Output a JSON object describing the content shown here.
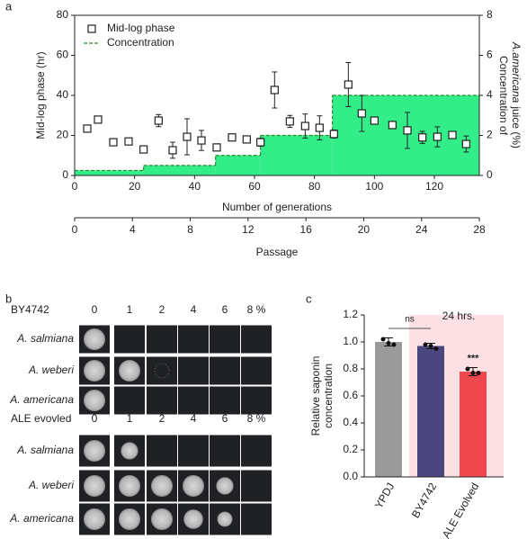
{
  "chart_data": [
    {
      "type": "scatter",
      "panel_label": "a",
      "xlabel": "Number of generations",
      "ylabel": "Mid-log phase (hr)",
      "y2label": [
        "Concentration of",
        "A.americana",
        "juice (%)"
      ],
      "x2label": "Passage",
      "xlim": [
        0,
        135
      ],
      "xticks": [
        0,
        20,
        40,
        60,
        80,
        100,
        120
      ],
      "ylim": [
        0,
        80
      ],
      "yticks": [
        0,
        20,
        40,
        60,
        80
      ],
      "y2lim": [
        0,
        8
      ],
      "y2ticks": [
        0,
        2,
        4,
        6,
        8
      ],
      "x2lim": [
        0,
        28
      ],
      "x2ticks": [
        0,
        4,
        8,
        12,
        16,
        20,
        24,
        28
      ],
      "legend": "upper left",
      "series": [
        {
          "name": "Mid-log phase",
          "type": "scatter",
          "color": "#222222",
          "x": [
            4.2,
            7.8,
            12.9,
            18,
            23,
            28,
            32.7,
            37.5,
            42.3,
            47.4,
            52.5,
            57.4,
            62,
            66.7,
            71.8,
            76.9,
            81.7,
            86.5,
            91.3,
            95.8,
            100,
            106,
            111,
            116,
            121,
            126,
            130.6
          ],
          "values": [
            23.4,
            27.9,
            16.6,
            17,
            13,
            27.4,
            12.6,
            19.3,
            17.5,
            14,
            19,
            18,
            16.6,
            42.7,
            27,
            24.7,
            23.8,
            20.7,
            45.4,
            31,
            27.4,
            25.2,
            22.5,
            19,
            19.3,
            20.2,
            15.7
          ],
          "errors": [
            1,
            1,
            1,
            1.5,
            1,
            3,
            4,
            9,
            5,
            1.5,
            1.5,
            1.5,
            2,
            9,
            3,
            6,
            6,
            2,
            11,
            9,
            1,
            1,
            9,
            3,
            5,
            1,
            4
          ]
        },
        {
          "name": "Concentration",
          "type": "step",
          "axis": "y2",
          "color": "#2a8a2a",
          "fill": "#33ee88",
          "x": [
            0,
            23,
            47,
            62,
            86
          ],
          "values": [
            0.25,
            0.5,
            1,
            2,
            4
          ]
        }
      ]
    },
    {
      "type": "bar",
      "panel_label": "c",
      "ylabel": [
        "Relative saponin",
        "concentration"
      ],
      "categories": [
        "YPDJ",
        "BY4742",
        "ALE Evolved"
      ],
      "values": [
        1.0,
        0.97,
        0.78
      ],
      "errors": [
        0.03,
        0.02,
        0.03
      ],
      "points": [
        [
          1.02,
          0.99,
          0.98
        ],
        [
          0.98,
          0.97,
          0.95
        ],
        [
          0.8,
          0.77,
          0.77
        ]
      ],
      "colors": [
        "#9a9a9a",
        "#4b4580",
        "#f0484f"
      ],
      "highlight_color": "#fde0e3",
      "ylim": [
        0,
        1.2
      ],
      "yticks": [
        {
          "value": 0,
          "label": "0.0"
        },
        {
          "value": 0.2,
          "label": "0.2"
        },
        {
          "value": 0.4,
          "label": "0.4"
        },
        {
          "value": 0.6,
          "label": "0.6"
        },
        {
          "value": 0.8,
          "label": "0.8"
        },
        {
          "value": 1,
          "label": "1.0"
        },
        {
          "value": 1.2,
          "label": "1.2"
        }
      ],
      "annotations": {
        "comparison": "ns",
        "time": "24 hrs.",
        "significance": "***"
      }
    }
  ],
  "spot_assay": {
    "panel_label": "b",
    "groups": [
      {
        "strain": "BY4742",
        "columns": [
          "0",
          "1",
          "2",
          "4",
          "6",
          "8 %"
        ],
        "rows": [
          "A. salmiana",
          "A. weberi",
          "A. americana"
        ]
      },
      {
        "strain": "ALE evovled",
        "columns": [
          "0",
          "1",
          "2",
          "4",
          "6",
          "8 %"
        ],
        "rows": [
          "A. salmiana",
          "A. weberi",
          "A. americana"
        ]
      }
    ]
  }
}
